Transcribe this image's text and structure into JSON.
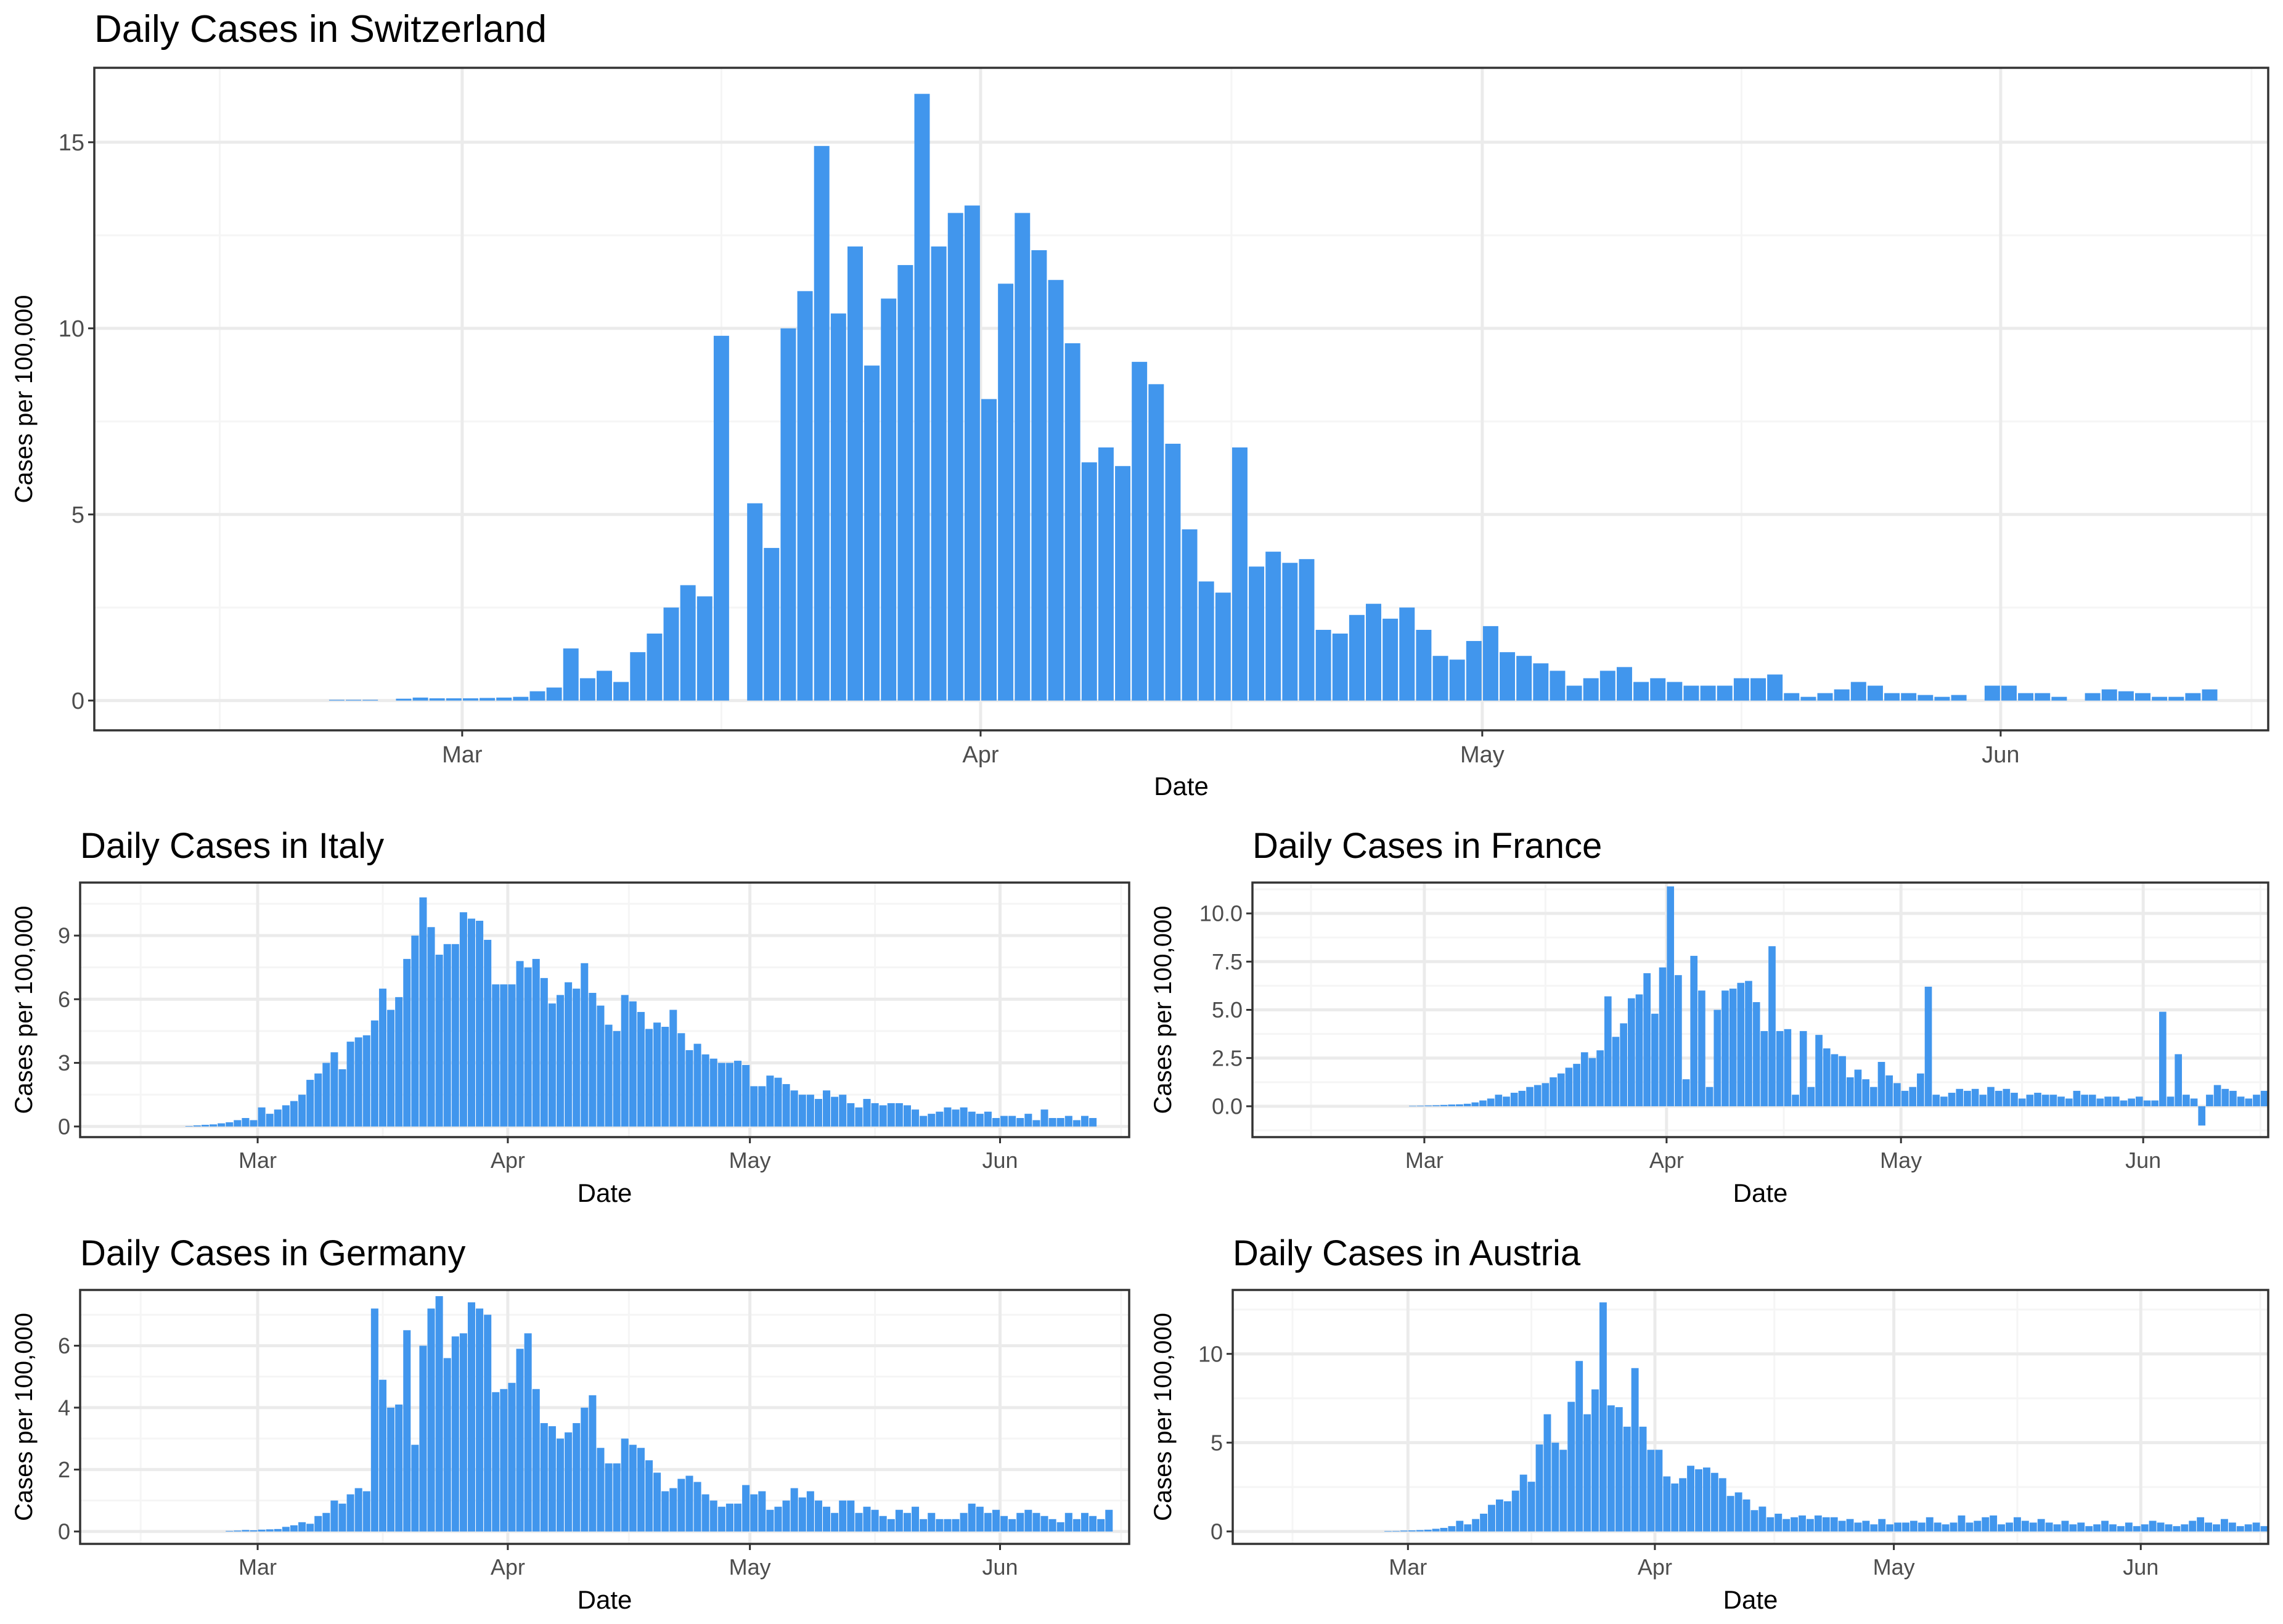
{
  "colors": {
    "bar": "#4196ED",
    "grid_major": "#EBEBEB",
    "grid_minor": "#F5F5F5",
    "panel_border": "#333333"
  },
  "x_tick_labels": [
    "Mar",
    "Apr",
    "May",
    "Jun"
  ],
  "chart_data": [
    {
      "type": "bar",
      "title": "Daily Cases in Switzerland",
      "xlabel": "Date",
      "ylabel": "Cases per 100,000",
      "x_start": "2020-02-08",
      "xlim_days": [
        0,
        130
      ],
      "ylim": [
        -0.8,
        17
      ],
      "y_ticks": [
        0,
        5,
        10,
        15
      ],
      "y_tick_labels": [
        "0",
        "5",
        "10",
        "15"
      ],
      "grid": true,
      "values": [
        0,
        0,
        0,
        0,
        0,
        0,
        0,
        0,
        0,
        0,
        0,
        0,
        0,
        0,
        0.02,
        0.02,
        0.02,
        0,
        0.05,
        0.08,
        0.06,
        0.06,
        0.06,
        0.07,
        0.08,
        0.1,
        0.25,
        0.35,
        1.4,
        0.6,
        0.8,
        0.5,
        1.3,
        1.8,
        2.5,
        3.1,
        2.8,
        9.8,
        0,
        5.3,
        4.1,
        10.0,
        11.0,
        14.9,
        10.4,
        12.2,
        9.0,
        10.8,
        11.7,
        16.3,
        12.2,
        13.1,
        13.3,
        8.1,
        11.2,
        13.1,
        12.1,
        11.3,
        9.6,
        6.4,
        6.8,
        6.3,
        9.1,
        8.5,
        6.9,
        4.6,
        3.2,
        2.9,
        6.8,
        3.6,
        4.0,
        3.7,
        3.8,
        1.9,
        1.8,
        2.3,
        2.6,
        2.2,
        2.5,
        1.9,
        1.2,
        1.1,
        1.6,
        2.0,
        1.3,
        1.2,
        1.0,
        0.8,
        0.4,
        0.6,
        0.8,
        0.9,
        0.5,
        0.6,
        0.5,
        0.4,
        0.4,
        0.4,
        0.6,
        0.6,
        0.7,
        0.2,
        0.1,
        0.2,
        0.3,
        0.5,
        0.4,
        0.2,
        0.2,
        0.15,
        0.1,
        0.15,
        0,
        0.4,
        0.4,
        0.2,
        0.2,
        0.1,
        0,
        0.2,
        0.3,
        0.25,
        0.2,
        0.1,
        0.1,
        0.2,
        0.3
      ]
    },
    {
      "type": "bar",
      "title": "Daily Cases in Italy",
      "xlabel": "Date",
      "ylabel": "Cases per 100,000",
      "x_start": "2020-02-08",
      "xlim_days": [
        0,
        130
      ],
      "ylim": [
        -0.5,
        11.5
      ],
      "y_ticks": [
        0,
        3,
        6,
        9
      ],
      "y_tick_labels": [
        "0",
        "3",
        "6",
        "9"
      ],
      "grid": true,
      "values": [
        0,
        0,
        0,
        0,
        0,
        0,
        0,
        0,
        0,
        0,
        0,
        0,
        0,
        0.02,
        0.05,
        0.08,
        0.1,
        0.15,
        0.2,
        0.3,
        0.4,
        0.3,
        0.9,
        0.6,
        0.8,
        1.0,
        1.2,
        1.5,
        2.2,
        2.5,
        3.0,
        3.5,
        2.7,
        4.0,
        4.2,
        4.3,
        5.0,
        6.5,
        5.5,
        6.1,
        7.9,
        9.0,
        10.8,
        9.4,
        8.1,
        8.6,
        8.6,
        10.1,
        9.8,
        9.7,
        8.8,
        6.7,
        6.7,
        6.7,
        7.8,
        7.5,
        7.9,
        7.0,
        5.8,
        6.2,
        6.8,
        6.5,
        7.7,
        6.3,
        5.7,
        4.8,
        4.5,
        6.2,
        5.9,
        5.4,
        4.6,
        4.9,
        4.7,
        5.5,
        4.4,
        3.6,
        3.9,
        3.4,
        3.2,
        3.0,
        3.0,
        3.1,
        2.9,
        1.9,
        1.9,
        2.4,
        2.3,
        2.0,
        1.7,
        1.5,
        1.5,
        1.3,
        1.7,
        1.4,
        1.5,
        1.1,
        0.9,
        1.3,
        1.1,
        1.0,
        1.1,
        1.1,
        1.0,
        0.8,
        0.5,
        0.6,
        0.7,
        0.9,
        0.8,
        0.9,
        0.7,
        0.6,
        0.7,
        0.4,
        0.5,
        0.5,
        0.4,
        0.6,
        0.3,
        0.8,
        0.4,
        0.4,
        0.5,
        0.3,
        0.5,
        0.4
      ]
    },
    {
      "type": "bar",
      "title": "Daily Cases in France",
      "xlabel": "Date",
      "ylabel": "Cases per 100,000",
      "x_start": "2020-02-08",
      "xlim_days": [
        0,
        130
      ],
      "ylim": [
        -1.6,
        11.6
      ],
      "y_ticks": [
        0,
        2.5,
        5,
        7.5,
        10
      ],
      "y_tick_labels": [
        "0.0",
        "2.5",
        "5.0",
        "7.5",
        "10.0"
      ],
      "grid": true,
      "values": [
        0,
        0,
        0,
        0,
        0,
        0,
        0,
        0,
        0,
        0,
        0,
        0,
        0,
        0,
        0,
        0,
        0,
        0,
        0,
        0,
        0.02,
        0.03,
        0.04,
        0.05,
        0.07,
        0.09,
        0.1,
        0.13,
        0.2,
        0.3,
        0.4,
        0.6,
        0.5,
        0.7,
        0.8,
        1.0,
        1.1,
        1.2,
        1.5,
        1.7,
        2.0,
        2.2,
        2.8,
        2.5,
        2.9,
        5.7,
        3.6,
        4.3,
        5.6,
        5.8,
        6.9,
        4.8,
        7.2,
        11.4,
        6.8,
        1.4,
        7.8,
        6.0,
        1.0,
        5.0,
        6.0,
        6.1,
        6.4,
        6.5,
        5.4,
        3.9,
        8.3,
        3.9,
        4.0,
        0.6,
        3.9,
        1.0,
        3.7,
        3.0,
        2.7,
        2.6,
        1.5,
        1.9,
        1.4,
        1.0,
        2.3,
        1.6,
        1.2,
        0.8,
        1.0,
        1.7,
        6.2,
        0.6,
        0.5,
        0.7,
        0.9,
        0.8,
        0.9,
        0.6,
        1.0,
        0.8,
        0.9,
        0.7,
        0.4,
        0.6,
        0.7,
        0.6,
        0.6,
        0.5,
        0.4,
        0.8,
        0.6,
        0.6,
        0.4,
        0.5,
        0.5,
        0.3,
        0.4,
        0.5,
        0.3,
        0.3,
        4.9,
        0.5,
        2.7,
        0.6,
        0.4,
        -1.0,
        0.6,
        1.1,
        0.9,
        0.8,
        0.5,
        0.4,
        0.6,
        0.8
      ]
    },
    {
      "type": "bar",
      "title": "Daily Cases in Germany",
      "xlabel": "Date",
      "ylabel": "Cases per 100,000",
      "x_start": "2020-02-08",
      "xlim_days": [
        0,
        130
      ],
      "ylim": [
        -0.4,
        7.8
      ],
      "y_ticks": [
        0,
        2,
        4,
        6
      ],
      "y_tick_labels": [
        "0",
        "2",
        "4",
        "6"
      ],
      "grid": true,
      "values": [
        0,
        0,
        0,
        0,
        0,
        0,
        0,
        0,
        0,
        0,
        0,
        0,
        0,
        0,
        0,
        0,
        0,
        0,
        0.02,
        0.03,
        0.05,
        0.04,
        0.06,
        0.07,
        0.08,
        0.15,
        0.2,
        0.3,
        0.25,
        0.5,
        0.6,
        1.0,
        0.9,
        1.2,
        1.4,
        1.3,
        7.2,
        4.9,
        4.0,
        4.1,
        6.5,
        2.8,
        6.0,
        7.2,
        7.6,
        5.6,
        6.3,
        6.4,
        7.4,
        7.2,
        7.0,
        4.5,
        4.6,
        4.8,
        5.9,
        6.4,
        4.6,
        3.5,
        3.4,
        3.0,
        3.2,
        3.5,
        4.0,
        4.4,
        2.7,
        2.2,
        2.2,
        3.0,
        2.8,
        2.7,
        2.3,
        1.9,
        1.3,
        1.4,
        1.7,
        1.8,
        1.6,
        1.2,
        1.0,
        0.8,
        0.9,
        0.9,
        1.5,
        1.2,
        1.3,
        0.7,
        0.8,
        1.0,
        1.4,
        1.1,
        1.3,
        1.0,
        0.8,
        0.6,
        1.0,
        1.0,
        0.6,
        0.8,
        0.7,
        0.5,
        0.4,
        0.7,
        0.6,
        0.8,
        0.4,
        0.6,
        0.4,
        0.4,
        0.4,
        0.6,
        0.9,
        0.8,
        0.6,
        0.7,
        0.5,
        0.4,
        0.6,
        0.7,
        0.6,
        0.5,
        0.4,
        0.3,
        0.6,
        0.4,
        0.6,
        0.5,
        0.4,
        0.7
      ]
    },
    {
      "type": "bar",
      "title": "Daily Cases in Austria",
      "xlabel": "Date",
      "ylabel": "Cases per 100,000",
      "x_start": "2020-02-08",
      "xlim_days": [
        0,
        130
      ],
      "ylim": [
        -0.7,
        13.6
      ],
      "y_ticks": [
        0,
        5,
        10
      ],
      "y_tick_labels": [
        "0",
        "5",
        "10"
      ],
      "grid": true,
      "values": [
        0,
        0,
        0,
        0,
        0,
        0,
        0,
        0,
        0,
        0,
        0,
        0,
        0,
        0,
        0,
        0,
        0,
        0,
        0,
        0.02,
        0.03,
        0.05,
        0.06,
        0.08,
        0.1,
        0.15,
        0.2,
        0.3,
        0.6,
        0.4,
        0.7,
        1.0,
        1.5,
        1.8,
        1.7,
        2.3,
        3.2,
        2.8,
        4.9,
        6.6,
        5.0,
        4.6,
        7.3,
        9.6,
        6.6,
        8.0,
        12.9,
        7.1,
        7.0,
        5.9,
        9.2,
        5.9,
        4.6,
        4.6,
        3.1,
        2.7,
        3.0,
        3.7,
        3.5,
        3.6,
        3.3,
        3.0,
        2.0,
        2.2,
        1.8,
        1.2,
        1.4,
        0.8,
        1.0,
        0.7,
        0.8,
        0.9,
        0.7,
        0.9,
        0.8,
        0.8,
        0.6,
        0.7,
        0.5,
        0.6,
        0.4,
        0.7,
        0.4,
        0.5,
        0.5,
        0.6,
        0.5,
        0.8,
        0.5,
        0.4,
        0.5,
        0.9,
        0.5,
        0.6,
        0.8,
        0.9,
        0.4,
        0.5,
        0.8,
        0.6,
        0.5,
        0.7,
        0.5,
        0.4,
        0.6,
        0.4,
        0.5,
        0.3,
        0.4,
        0.6,
        0.4,
        0.3,
        0.5,
        0.3,
        0.4,
        0.6,
        0.5,
        0.4,
        0.3,
        0.4,
        0.6,
        0.8,
        0.5,
        0.4,
        0.7,
        0.5,
        0.3,
        0.4,
        0.5,
        0.3
      ]
    }
  ]
}
